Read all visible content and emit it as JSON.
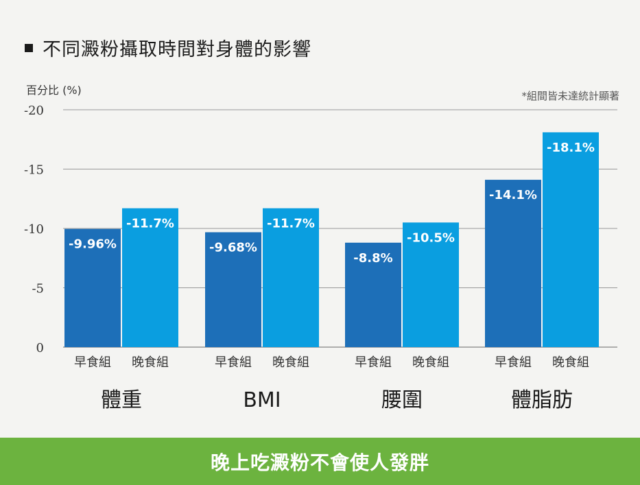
{
  "title": "不同澱粉攝取時間對身體的影響",
  "footer": "晚上吃澱粉不會使人發胖",
  "colors": {
    "breakfast": "#1d6fb8",
    "dinner": "#0a9ee0",
    "gridline": "#999999",
    "footer_bg": "#6cb33f"
  },
  "chart_data": {
    "type": "bar",
    "ylabel": "百分比 (%)",
    "note": "*組間皆未達統計顯著",
    "ylim": [
      0,
      -20
    ],
    "yticks": [
      0,
      -5,
      -10,
      -15,
      -20
    ],
    "ytick_labels": [
      "0",
      "-5",
      "-10",
      "-15",
      "-20"
    ],
    "categories": [
      "體重",
      "BMI",
      "腰圍",
      "體脂肪"
    ],
    "series": [
      {
        "name": "早食組",
        "values": [
          -9.96,
          -9.68,
          -8.8,
          -14.1
        ],
        "labels": [
          "-9.96%",
          "-9.68%",
          "-8.8%",
          "-14.1%"
        ]
      },
      {
        "name": "晚食組",
        "values": [
          -11.7,
          -11.7,
          -10.5,
          -18.1
        ],
        "labels": [
          "-11.7%",
          "-11.7%",
          "-10.5%",
          "-18.1%"
        ]
      }
    ]
  }
}
